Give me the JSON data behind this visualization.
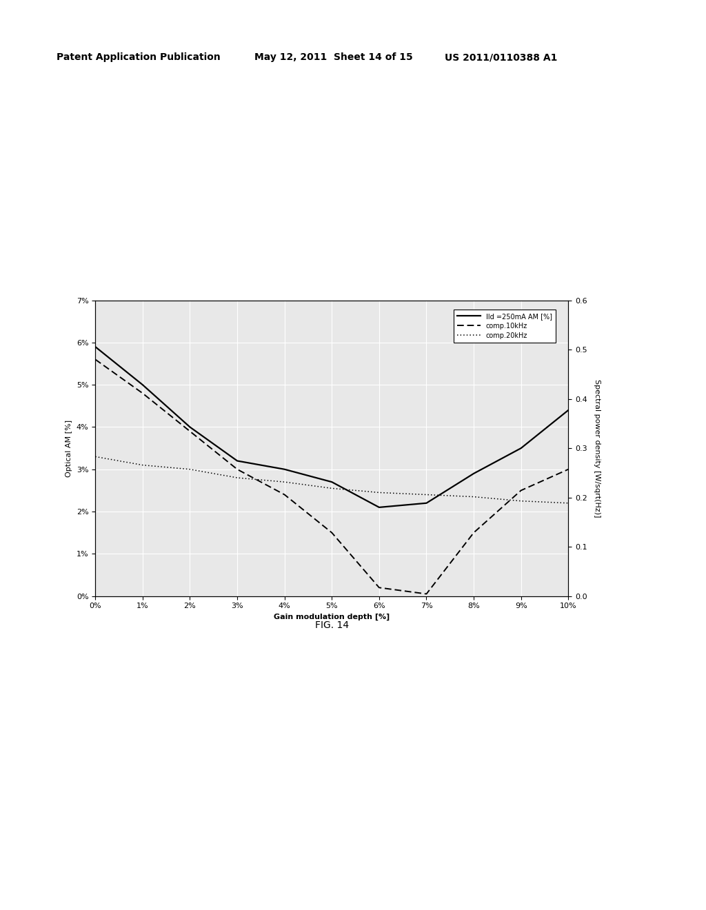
{
  "fig_label": "FIG. 14",
  "xlabel": "Gain modulation depth [%]",
  "ylabel_left": "Optical AM [%]",
  "ylabel_right": "Spectral power density [W/sqrt(Hz)]",
  "x_ticks": [
    0,
    1,
    2,
    3,
    4,
    5,
    6,
    7,
    8,
    9,
    10
  ],
  "y_left_ticks": [
    0,
    1,
    2,
    3,
    4,
    5,
    6,
    7
  ],
  "y_right_ticks": [
    0.0,
    0.1,
    0.2,
    0.3,
    0.4,
    0.5,
    0.6
  ],
  "legend": [
    "Ild =250mA AM [%]",
    "comp.10kHz",
    "comp.20kHz"
  ],
  "line_solid_x": [
    0,
    1,
    2,
    3,
    4,
    5,
    6,
    7,
    8,
    9,
    10
  ],
  "line_solid_y": [
    5.9,
    5.0,
    4.0,
    3.2,
    3.0,
    2.7,
    2.1,
    2.2,
    2.9,
    3.5,
    4.4
  ],
  "line_dash_x": [
    0,
    1,
    2,
    3,
    4,
    5,
    6,
    7,
    8,
    9,
    10
  ],
  "line_dash_y": [
    5.6,
    4.8,
    3.9,
    3.0,
    2.4,
    1.5,
    0.2,
    0.05,
    1.5,
    2.5,
    3.0
  ],
  "line_dot_x": [
    0,
    1,
    2,
    3,
    4,
    5,
    6,
    7,
    8,
    9,
    10
  ],
  "line_dot_y": [
    3.3,
    3.1,
    3.0,
    2.8,
    2.7,
    2.55,
    2.45,
    2.4,
    2.35,
    2.25,
    2.2
  ],
  "bg_color": "#ffffff",
  "plot_bg_color": "#e8e8e8",
  "line_color": "#000000",
  "grid_color": "#ffffff",
  "font_size": 8,
  "header_font_size": 10,
  "header_left": "Patent Application Publication",
  "header_mid": "May 12, 2011  Sheet 14 of 15",
  "header_right": "US 2011/0110388 A1"
}
